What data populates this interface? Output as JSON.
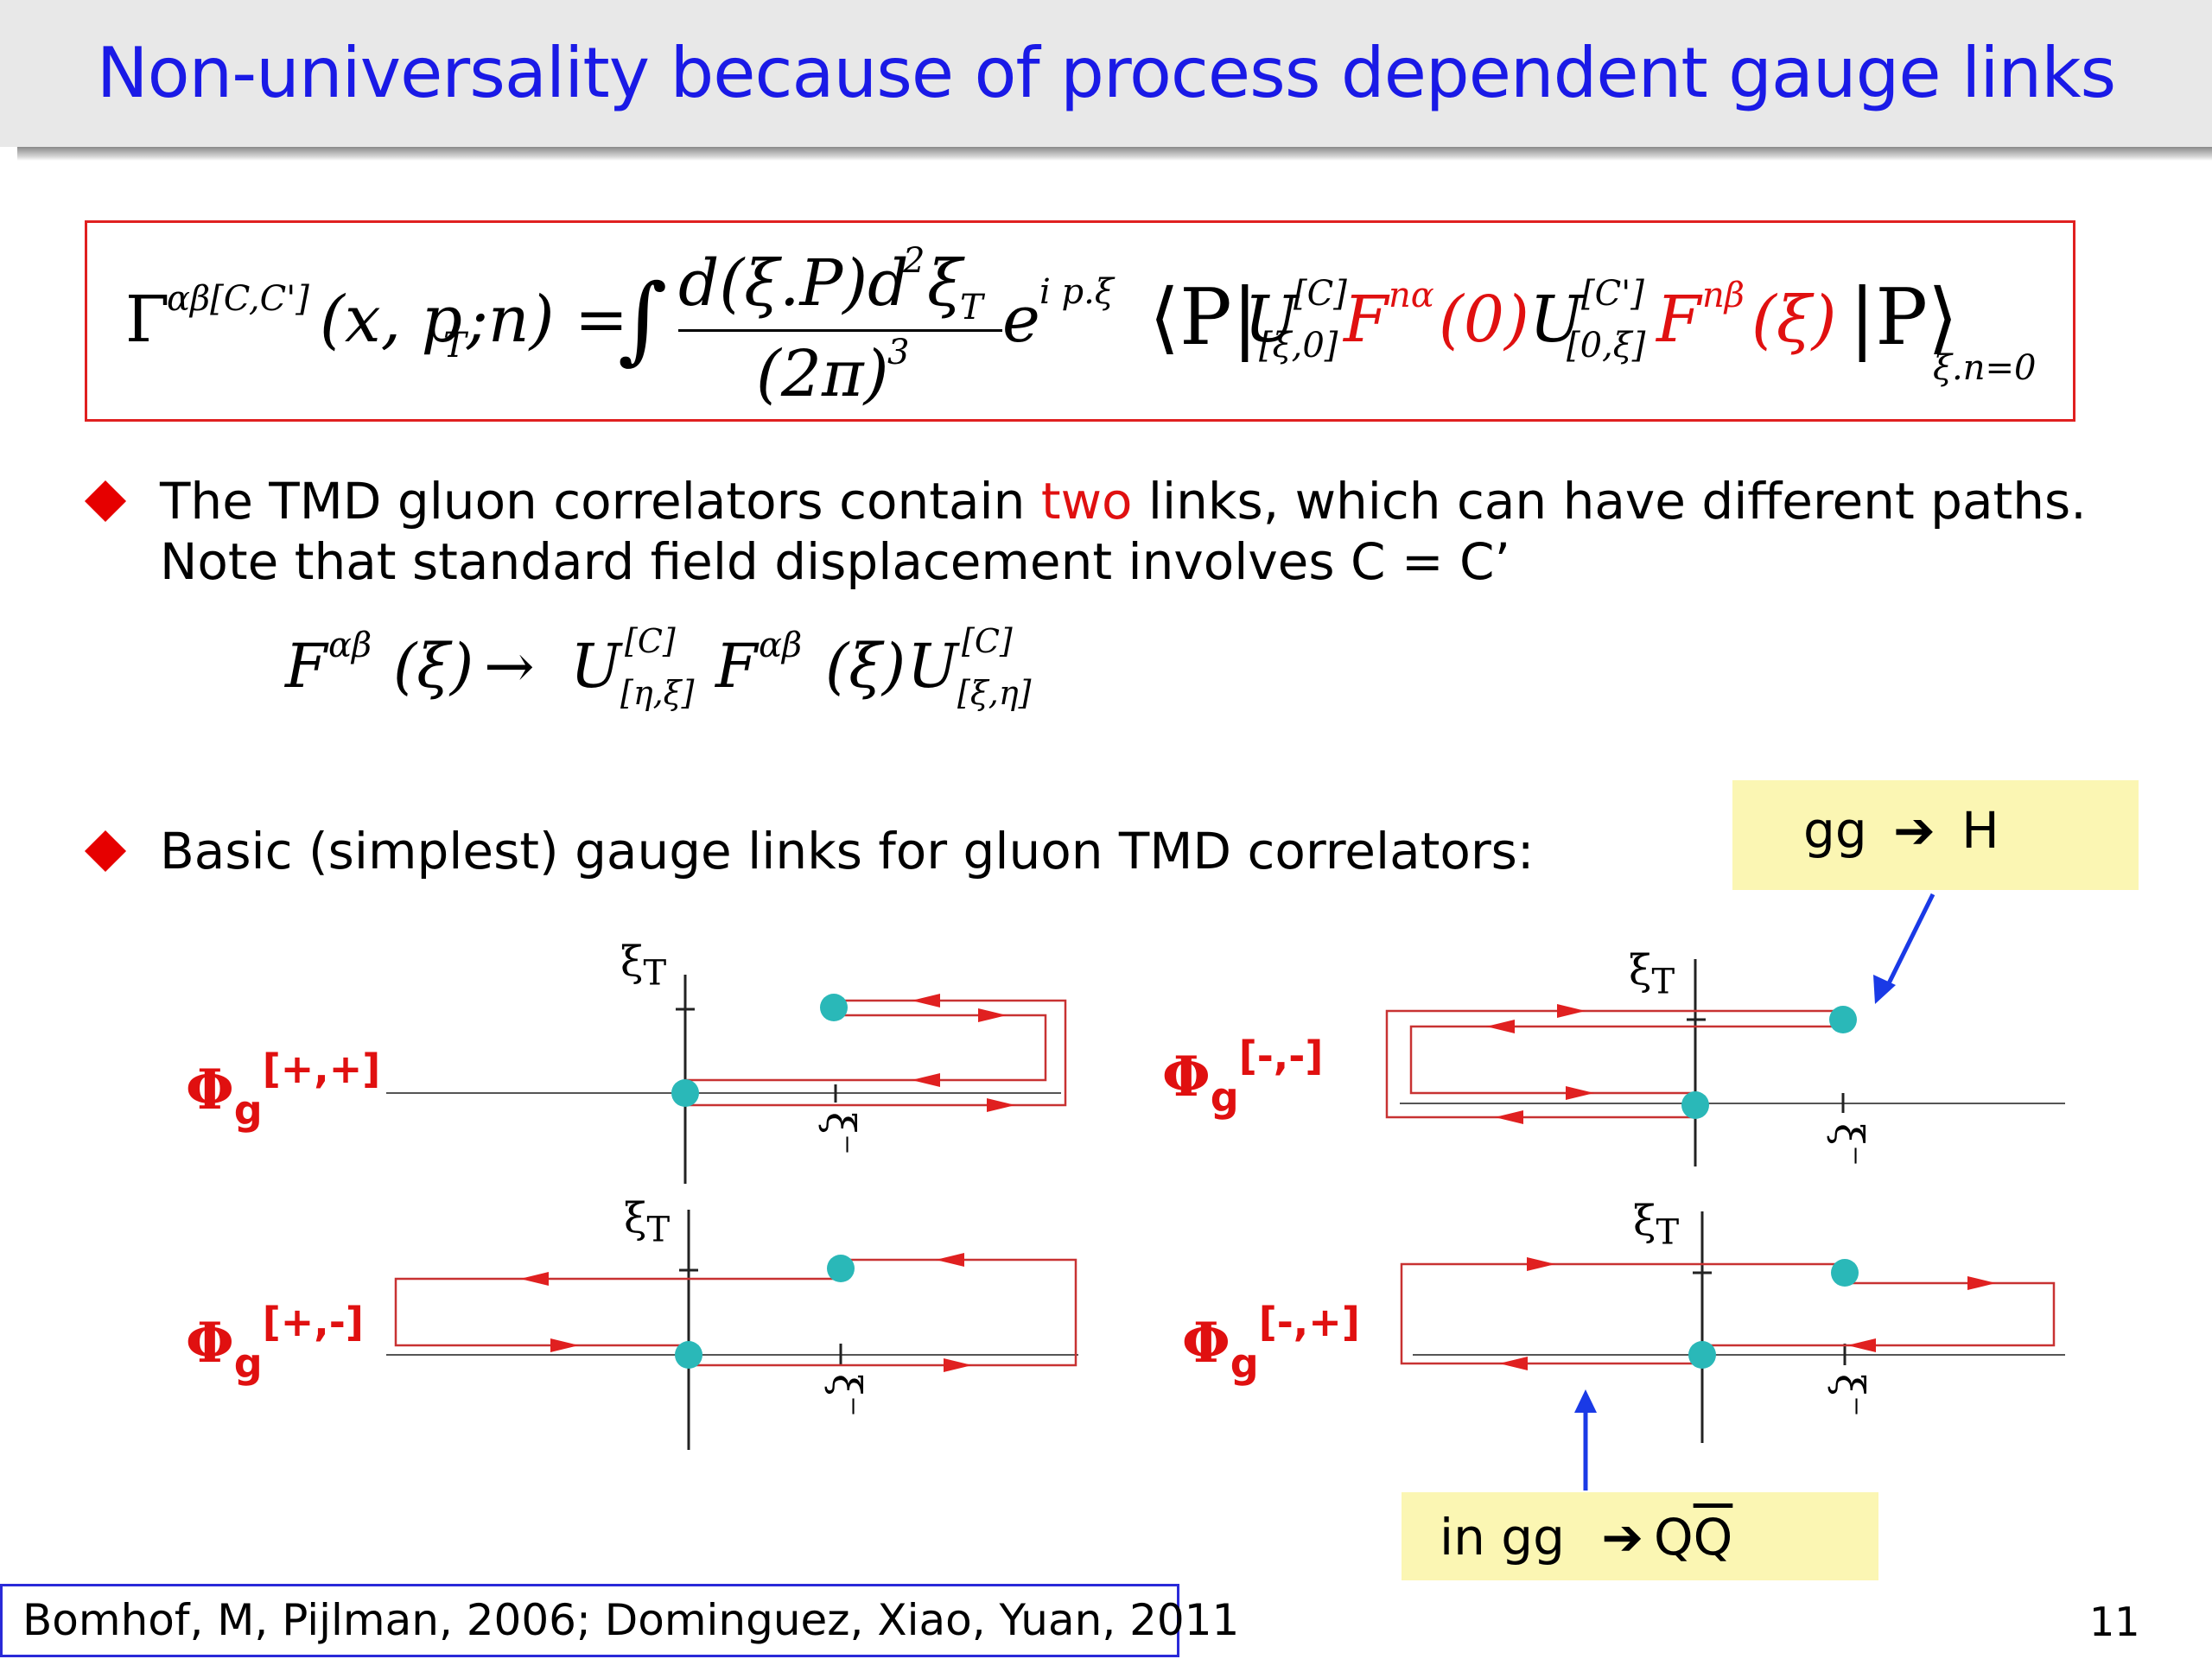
{
  "title": "Non-universality because of process dependent gauge links",
  "formula": {
    "lhs_symbol": "Γ",
    "lhs_sup": "αβ[C,C']",
    "lhs_args": "(x, p",
    "lhs_args_sub": "T",
    "lhs_args_end": ";n) =",
    "integral": "∫",
    "frac_num": "d(ξ.P)d",
    "frac_num_sup": "2",
    "frac_num_xi": "ξ",
    "frac_num_sub": "T",
    "frac_den": "(2π)",
    "frac_den_sup": "3",
    "exp_base": "e",
    "exp_sup": "i p.ξ",
    "bra": "⟨P|",
    "u1": "U",
    "u1_sup": "[C]",
    "u1_sub": "[ξ,0]",
    "f1": "F",
    "f1_sup": "nα",
    "f1_arg": "(0)",
    "u2": "U",
    "u2_sup": "[C']",
    "u2_sub": "[0,ξ]",
    "f2": "F",
    "f2_sup": "nβ",
    "f2_arg": "(ξ)",
    "ket": "|P⟩",
    "ket_sub": "ξ.n=0"
  },
  "bullets": [
    {
      "line1_a": "The TMD gluon correlators contain ",
      "line1_red": "two",
      "line1_b": " links, which can have different paths.",
      "line2": "Note that standard field displacement involves C = C’"
    },
    {
      "line1": "Basic (simplest) gauge links for gluon TMD correlators:"
    }
  ],
  "displacement": {
    "f": "F",
    "f_sup": "αβ",
    "arg": "(ξ)",
    "arrow": "→",
    "u1": "U",
    "u1_sup": "[C]",
    "u1_sub": "[η,ξ]",
    "f2": "F",
    "f2_sup": "αβ",
    "arg2": "(ξ)",
    "u2": "U",
    "u2_sup": "[C]",
    "u2_sub": "[ξ,η]"
  },
  "callouts": {
    "higgs": {
      "a": "gg",
      "arrow": "➔",
      "b": "H"
    },
    "qq": {
      "a": "in gg",
      "arrow": "➔",
      "b": "Q",
      "c": "Q"
    }
  },
  "diagrams": [
    {
      "phi": "Φ",
      "sub": "g",
      "sup": "[+,+]",
      "xi_t": "ξ",
      "xi_t_sub": "T",
      "xi_minus": "ξ⁻"
    },
    {
      "phi": "Φ",
      "sub": "g",
      "sup": "[-,-]",
      "xi_t": "ξ",
      "xi_t_sub": "T",
      "xi_minus": "ξ⁻"
    },
    {
      "phi": "Φ",
      "sub": "g",
      "sup": "[+,-]",
      "xi_t": "ξ",
      "xi_t_sub": "T",
      "xi_minus": "ξ⁻"
    },
    {
      "phi": "Φ",
      "sub": "g",
      "sup": "[-,+]",
      "xi_t": "ξ",
      "xi_t_sub": "T",
      "xi_minus": "ξ⁻"
    }
  ],
  "colors": {
    "title": "#1a1ae6",
    "accent_red": "#e01010",
    "path_red": "#c83232",
    "dot": "#2ab8b8",
    "callout_bg": "#fbf6b3",
    "arrow_blue": "#1a3ae6"
  },
  "reference": "Bomhof, M, Pijlman, 2006; Dominguez, Xiao, Yuan, 2011",
  "page_number": "11"
}
